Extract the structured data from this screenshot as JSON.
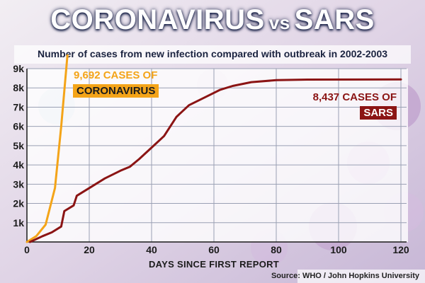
{
  "header": {
    "title_left": "CORONAVIRUS",
    "title_vs": "vs",
    "title_right": "SARS",
    "subtitle": "Number of cases from new infection compared with outbreak in 2002-2003"
  },
  "source": "Source: WHO / John Hopkins University",
  "colors": {
    "coronavirus": "#f4a418",
    "sars": "#8b1414",
    "title_bg": "#1a2f6e"
  },
  "chart_data": {
    "type": "line",
    "title": "CORONAVIRUS vs SARS",
    "subtitle": "Number of cases from new infection compared with outbreak in 2002-2003",
    "xlabel": "DAYS SINCE FIRST REPORT",
    "ylabel": "",
    "xlim": [
      0,
      120
    ],
    "ylim": [
      0,
      9000
    ],
    "x_ticks": [
      0,
      20,
      40,
      60,
      80,
      100,
      120
    ],
    "x_tick_labels": [
      "0",
      "20",
      "40",
      "60",
      "80",
      "100",
      "120"
    ],
    "y_ticks": [
      1000,
      2000,
      3000,
      4000,
      5000,
      6000,
      7000,
      8000,
      9000
    ],
    "y_tick_labels": [
      "1k",
      "2k",
      "3k",
      "4k",
      "5k",
      "6k",
      "7k",
      "8k",
      "9k"
    ],
    "grid": true,
    "series": [
      {
        "name": "CORONAVIRUS",
        "color": "#f4a418",
        "points": [
          [
            0,
            0
          ],
          [
            3,
            300
          ],
          [
            6,
            900
          ],
          [
            9,
            2800
          ],
          [
            11,
            6000
          ],
          [
            13,
            9692
          ]
        ],
        "annotation": {
          "line1": "9,692 CASES OF",
          "line2": "CORONAVIRUS"
        }
      },
      {
        "name": "SARS",
        "color": "#8b1414",
        "points": [
          [
            1,
            0
          ],
          [
            5,
            300
          ],
          [
            8,
            500
          ],
          [
            11,
            800
          ],
          [
            12,
            1600
          ],
          [
            15,
            1900
          ],
          [
            16,
            2400
          ],
          [
            20,
            2800
          ],
          [
            25,
            3300
          ],
          [
            30,
            3700
          ],
          [
            33,
            3900
          ],
          [
            36,
            4300
          ],
          [
            40,
            4900
          ],
          [
            44,
            5500
          ],
          [
            48,
            6500
          ],
          [
            52,
            7100
          ],
          [
            57,
            7500
          ],
          [
            62,
            7900
          ],
          [
            66,
            8100
          ],
          [
            72,
            8300
          ],
          [
            80,
            8400
          ],
          [
            90,
            8430
          ],
          [
            120,
            8437
          ]
        ],
        "annotation": {
          "line1": "8,437 CASES OF",
          "line2": "SARS"
        }
      }
    ]
  }
}
